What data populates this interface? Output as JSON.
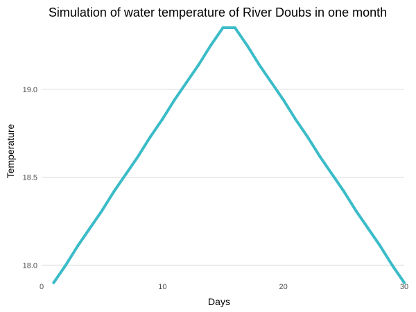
{
  "chart_data": {
    "type": "line",
    "title": "Simulation of water temperature of River Doubs in one month",
    "xlabel": "Days",
    "ylabel": "Temperature",
    "xlim": [
      0,
      30
    ],
    "ylim": [
      17.95,
      19.35
    ],
    "x_ticks": [
      0,
      10,
      20,
      30
    ],
    "x_tick_labels": [
      "0",
      "10",
      "20",
      "30"
    ],
    "y_ticks": [
      18.0,
      18.5,
      19.0
    ],
    "y_tick_labels": [
      "18.0",
      "18.5",
      "19.0"
    ],
    "grid": "horizontal major lines",
    "legend": "none",
    "colors": {
      "series": "#3bbcc8",
      "grid": "#d9d9d9",
      "tick_text": "#4d4d4d",
      "background": "#ffffff"
    },
    "series": [
      {
        "x": [
          1,
          2,
          3,
          4,
          5,
          6,
          7,
          8,
          9,
          10,
          11,
          12,
          13,
          14,
          15,
          16,
          17,
          18,
          19,
          20,
          21,
          22,
          23,
          24,
          25,
          26,
          27,
          28,
          29,
          30
        ],
        "y": [
          17.9,
          18.0,
          18.11,
          18.21,
          18.31,
          18.42,
          18.52,
          18.62,
          18.73,
          18.83,
          18.94,
          19.04,
          19.14,
          19.25,
          19.35,
          19.35,
          19.25,
          19.14,
          19.04,
          18.94,
          18.83,
          18.73,
          18.62,
          18.52,
          18.42,
          18.31,
          18.21,
          18.11,
          18.0,
          17.9
        ]
      }
    ]
  }
}
